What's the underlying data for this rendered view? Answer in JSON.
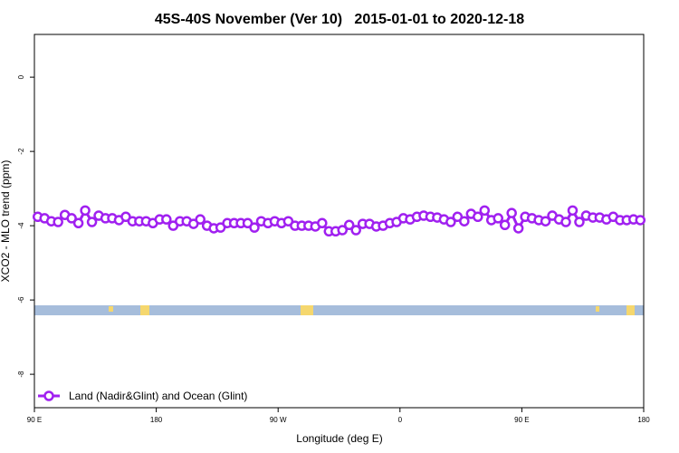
{
  "chart_data": {
    "type": "line",
    "title": "45S-40S November (Ver 10)   2015-01-01 to 2020-12-18",
    "x_label": "Longitude (deg E)",
    "y_label": "XCO2 - MLO trend (ppm)",
    "x": [
      92.5,
      97.5,
      102.5,
      107.5,
      112.5,
      117.5,
      122.5,
      127.5,
      132.5,
      137.5,
      142.5,
      147.5,
      152.5,
      157.5,
      162.5,
      167.5,
      172.5,
      177.5,
      182.5,
      187.5,
      192.5,
      197.5,
      202.5,
      207.5,
      212.5,
      217.5,
      222.5,
      227.5,
      232.5,
      237.5,
      242.5,
      247.5,
      252.5,
      257.5,
      262.5,
      267.5,
      272.5,
      277.5,
      282.5,
      287.5,
      292.5,
      297.5,
      302.5,
      307.5,
      312.5,
      317.5,
      322.5,
      327.5,
      332.5,
      337.5,
      342.5,
      347.5,
      352.5,
      357.5,
      362.5,
      367.5,
      372.5,
      377.5,
      382.5,
      387.5,
      392.5,
      397.5,
      402.5,
      407.5,
      412.5,
      417.5,
      422.5,
      427.5,
      432.5,
      437.5,
      442.5,
      447.5,
      452.5,
      457.5,
      462.5,
      467.5,
      472.5,
      477.5,
      482.5,
      487.5,
      492.5,
      497.5,
      502.5,
      507.5,
      512.5,
      517.5,
      522.5,
      527.5,
      532.5,
      537.5
    ],
    "series": [
      {
        "name": "Land (Nadir&Glint) and Ocean (Glint)",
        "color": "#a020f0",
        "values": [
          -3.76,
          -3.8,
          -3.88,
          -3.9,
          -3.71,
          -3.8,
          -3.93,
          -3.59,
          -3.9,
          -3.73,
          -3.8,
          -3.8,
          -3.85,
          -3.76,
          -3.88,
          -3.88,
          -3.88,
          -3.93,
          -3.83,
          -3.83,
          -4.0,
          -3.88,
          -3.88,
          -3.95,
          -3.83,
          -4.0,
          -4.07,
          -4.05,
          -3.93,
          -3.93,
          -3.93,
          -3.93,
          -4.05,
          -3.88,
          -3.93,
          -3.88,
          -3.93,
          -3.88,
          -4.0,
          -4.0,
          -4.0,
          -4.02,
          -3.93,
          -4.15,
          -4.15,
          -4.12,
          -3.98,
          -4.12,
          -3.95,
          -3.95,
          -4.02,
          -4.0,
          -3.93,
          -3.9,
          -3.8,
          -3.83,
          -3.76,
          -3.73,
          -3.76,
          -3.78,
          -3.83,
          -3.9,
          -3.76,
          -3.88,
          -3.68,
          -3.76,
          -3.59,
          -3.85,
          -3.8,
          -3.98,
          -3.66,
          -4.07,
          -3.76,
          -3.8,
          -3.85,
          -3.88,
          -3.73,
          -3.83,
          -3.9,
          -3.59,
          -3.9,
          -3.73,
          -3.78,
          -3.78,
          -3.83,
          -3.76,
          -3.85,
          -3.85,
          -3.83,
          -3.85
        ]
      }
    ],
    "xlim": [
      90,
      540
    ],
    "xticks": [
      {
        "value": 90,
        "label": "90 E"
      },
      {
        "value": 180,
        "label": "180"
      },
      {
        "value": 270,
        "label": "90 W"
      },
      {
        "value": 360,
        "label": "0"
      },
      {
        "value": 450,
        "label": "90 E"
      },
      {
        "value": 540,
        "label": "180"
      }
    ],
    "ylim": [
      -8.9,
      1.15
    ],
    "yticks": [
      0,
      -2,
      -4,
      -6,
      -8
    ],
    "legend": "bottom-left"
  }
}
